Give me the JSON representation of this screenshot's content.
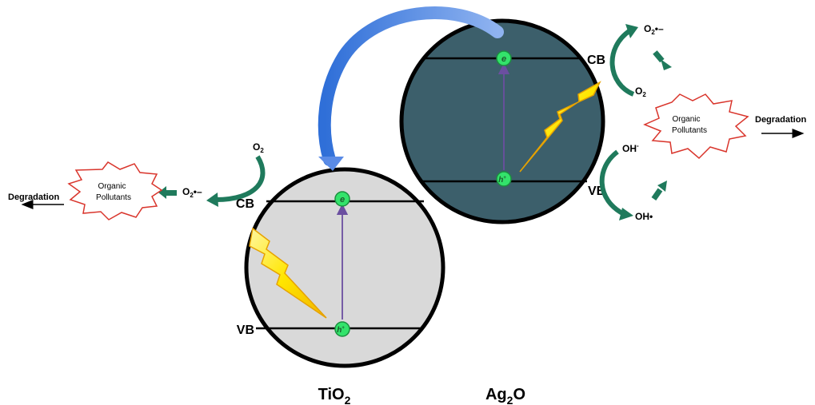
{
  "materials": {
    "tio2": {
      "name": "TiO",
      "sub": "2",
      "cb": "CB",
      "vb": "VB",
      "fill": "#d9d9d9"
    },
    "ag2o": {
      "name_a": "Ag",
      "sub": "2",
      "name_b": "O",
      "cb": "CB",
      "vb": "VB",
      "fill": "#3c5f6b"
    }
  },
  "carriers": {
    "electron": "e",
    "hole": "h",
    "hole_sup": "+"
  },
  "left_side": {
    "o2": "O",
    "o2_sub": "2",
    "superoxide": "O",
    "superoxide_sub": "2",
    "superoxide_sup": "•–",
    "pollutant_line1": "Organic",
    "pollutant_line2": "Pollutants",
    "degradation": "Degradation"
  },
  "right_side": {
    "superoxide": "O",
    "superoxide_sub": "2",
    "superoxide_sup": "•–",
    "o2": "O",
    "o2_sub": "2",
    "hydroxide": "OH",
    "hydroxide_sup": "-",
    "hydroxyl_radical": "OH•",
    "pollutant_line1": "Organic",
    "pollutant_line2": "Pollutants",
    "degradation": "Degradation"
  },
  "colors": {
    "band": "#000000",
    "carrier": "#33e36b",
    "carrier_text": "#1d5c2e",
    "excitation": "#6b4fa0",
    "green_arrow": "#1f7a5c",
    "blue_arrow": "#4a7fe0",
    "star_outline": "#d9352c",
    "bolt": "#ffe600"
  }
}
